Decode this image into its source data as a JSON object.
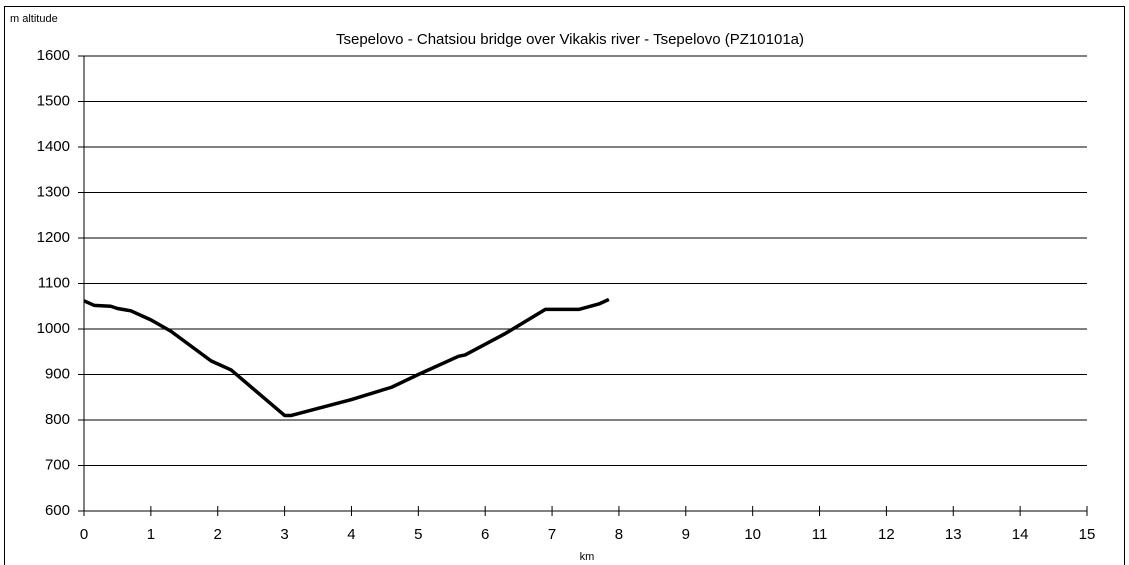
{
  "chart_data": {
    "type": "line",
    "title": "Tsepelovo  - Chatsiou bridge over Vikakis river - Tsepelovo  (PZ10101a)",
    "y_label": "m altitude",
    "x_label": "km",
    "x": [
      0,
      0.15,
      0.4,
      0.5,
      0.7,
      1.0,
      1.3,
      1.9,
      2.2,
      3.0,
      3.1,
      4.0,
      4.6,
      5.0,
      5.6,
      5.7,
      6.3,
      6.9,
      7.4,
      7.7,
      7.85
    ],
    "series": [
      {
        "name": "altitude",
        "color": "#000000",
        "values": [
          1062,
          1052,
          1050,
          1045,
          1040,
          1020,
          995,
          930,
          910,
          810,
          810,
          845,
          872,
          900,
          940,
          943,
          990,
          1043,
          1043,
          1055,
          1065
        ]
      }
    ],
    "xlim": [
      0,
      15
    ],
    "xticks": [
      0,
      1,
      2,
      3,
      4,
      5,
      6,
      7,
      8,
      9,
      10,
      11,
      12,
      13,
      14,
      15
    ],
    "ylim": [
      600,
      1600
    ],
    "yticks": [
      600,
      700,
      800,
      900,
      1000,
      1100,
      1200,
      1300,
      1400,
      1500,
      1600
    ],
    "grid": true
  }
}
